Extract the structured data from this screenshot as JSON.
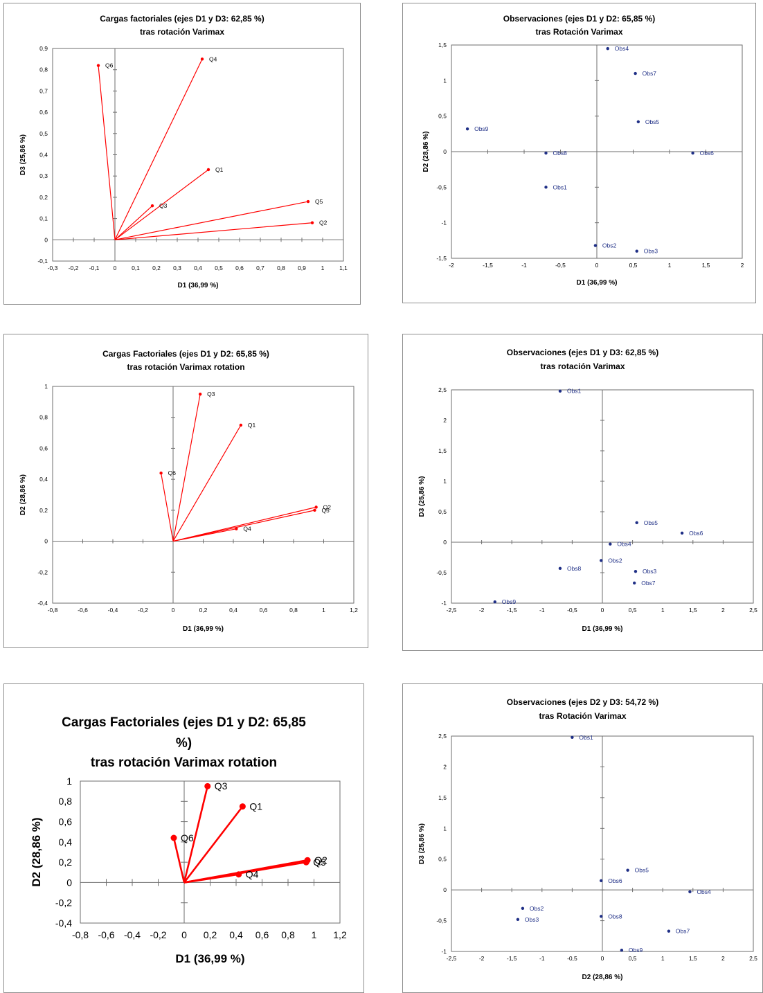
{
  "chart_data": [
    {
      "id": "c1",
      "type": "scatter",
      "mode": "loadings",
      "title": [
        "Cargas factoriales (ejes D1 y D3: 62,85 %)",
        "tras rotación Varimax"
      ],
      "xlabel": "D1 (36,99 %)",
      "ylabel": "D3 (25,86 %)",
      "xlim": [
        -0.3,
        1.1
      ],
      "xstep": 0.1,
      "ylim": [
        -0.1,
        0.9
      ],
      "ystep": 0.1,
      "color": "#ff0000",
      "points": [
        {
          "label": "Q6",
          "x": -0.08,
          "y": 0.82
        },
        {
          "label": "Q4",
          "x": 0.42,
          "y": 0.85
        },
        {
          "label": "Q1",
          "x": 0.45,
          "y": 0.33
        },
        {
          "label": "Q3",
          "x": 0.18,
          "y": 0.16
        },
        {
          "label": "Q5",
          "x": 0.93,
          "y": 0.18
        },
        {
          "label": "Q2",
          "x": 0.95,
          "y": 0.08
        }
      ]
    },
    {
      "id": "c2",
      "type": "scatter",
      "mode": "observations",
      "title": [
        "Observaciones (ejes D1 y D2: 65,85 %)",
        "tras Rotación Varimax"
      ],
      "xlabel": "D1 (36,99 %)",
      "ylabel": "D2 (28,86 %)",
      "xlim": [
        -2,
        2
      ],
      "xstep": 0.5,
      "ylim": [
        -1.5,
        1.5
      ],
      "ystep": 0.5,
      "color": "#1f2f86",
      "points": [
        {
          "label": "Obs4",
          "x": 0.15,
          "y": 1.45
        },
        {
          "label": "Obs7",
          "x": 0.53,
          "y": 1.1
        },
        {
          "label": "Obs5",
          "x": 0.57,
          "y": 0.42
        },
        {
          "label": "Obs9",
          "x": -1.78,
          "y": 0.32
        },
        {
          "label": "Obs8",
          "x": -0.7,
          "y": -0.02
        },
        {
          "label": "Obs6",
          "x": 1.32,
          "y": -0.02
        },
        {
          "label": "Obs1",
          "x": -0.7,
          "y": -0.5
        },
        {
          "label": "Obs2",
          "x": -0.02,
          "y": -1.32
        },
        {
          "label": "Obs3",
          "x": 0.55,
          "y": -1.4
        }
      ]
    },
    {
      "id": "c3",
      "type": "scatter",
      "mode": "loadings",
      "title": [
        "Cargas Factoriales (ejes D1 y D2: 65,85 %)",
        "tras rotación Varimax rotation"
      ],
      "xlabel": "D1 (36,99 %)",
      "ylabel": "D2 (28,86 %)",
      "xlim": [
        -0.8,
        1.2
      ],
      "xstep": 0.2,
      "ylim": [
        -0.4,
        1.0
      ],
      "ystep": 0.2,
      "color": "#ff0000",
      "points": [
        {
          "label": "Q3",
          "x": 0.18,
          "y": 0.95
        },
        {
          "label": "Q1",
          "x": 0.45,
          "y": 0.75
        },
        {
          "label": "Q6",
          "x": -0.08,
          "y": 0.44
        },
        {
          "label": "Q2",
          "x": 0.95,
          "y": 0.22
        },
        {
          "label": "Q5",
          "x": 0.94,
          "y": 0.2
        },
        {
          "label": "Q4",
          "x": 0.42,
          "y": 0.08
        }
      ]
    },
    {
      "id": "c4",
      "type": "scatter",
      "mode": "observations",
      "title": [
        "Observaciones (ejes D1 y D3: 62,85 %)",
        "tras rotación Varimax"
      ],
      "xlabel": "D1 (36,99 %)",
      "ylabel": "D3 (25,86 %)",
      "xlim": [
        -2.5,
        2.5
      ],
      "xstep": 0.5,
      "ylim": [
        -1,
        2.5
      ],
      "ystep": 0.5,
      "color": "#1f2f86",
      "points": [
        {
          "label": "Obs1",
          "x": -0.7,
          "y": 2.48
        },
        {
          "label": "Obs5",
          "x": 0.57,
          "y": 0.32
        },
        {
          "label": "Obs6",
          "x": 1.32,
          "y": 0.15
        },
        {
          "label": "Obs4",
          "x": 0.13,
          "y": -0.03
        },
        {
          "label": "Obs2",
          "x": -0.02,
          "y": -0.3
        },
        {
          "label": "Obs8",
          "x": -0.7,
          "y": -0.43
        },
        {
          "label": "Obs3",
          "x": 0.55,
          "y": -0.48
        },
        {
          "label": "Obs7",
          "x": 0.53,
          "y": -0.67
        },
        {
          "label": "Obs9",
          "x": -1.78,
          "y": -0.98
        }
      ]
    },
    {
      "id": "c5",
      "type": "scatter",
      "mode": "loadings-large",
      "title": [
        "Cargas Factoriales (ejes D1 y D2: 65,85",
        "%)",
        "tras rotación  Varimax rotation"
      ],
      "xlabel": "D1 (36,99 %)",
      "ylabel": "D2 (28,86 %)",
      "xlim": [
        -0.8,
        1.2
      ],
      "xstep": 0.2,
      "ylim": [
        -0.4,
        1.0
      ],
      "ystep": 0.2,
      "color": "#ff0000",
      "points": [
        {
          "label": "Q3",
          "x": 0.18,
          "y": 0.95
        },
        {
          "label": "Q1",
          "x": 0.45,
          "y": 0.75
        },
        {
          "label": "Q6",
          "x": -0.08,
          "y": 0.44
        },
        {
          "label": "Q2",
          "x": 0.95,
          "y": 0.22
        },
        {
          "label": "Q5",
          "x": 0.94,
          "y": 0.2
        },
        {
          "label": "Q4",
          "x": 0.42,
          "y": 0.08
        }
      ]
    },
    {
      "id": "c6",
      "type": "scatter",
      "mode": "observations",
      "title": [
        "Observaciones (ejes D2 y D3: 54,72 %)",
        "tras Rotación Varimax"
      ],
      "xlabel": "D2 (28,86 %)",
      "ylabel": "D3 (25,86 %)",
      "xlim": [
        -2.5,
        2.5
      ],
      "xstep": 0.5,
      "ylim": [
        -1,
        2.5
      ],
      "ystep": 0.5,
      "color": "#1f2f86",
      "points": [
        {
          "label": "Obs1",
          "x": -0.5,
          "y": 2.48
        },
        {
          "label": "Obs5",
          "x": 0.42,
          "y": 0.32
        },
        {
          "label": "Obs6",
          "x": -0.02,
          "y": 0.15
        },
        {
          "label": "Obs4",
          "x": 1.45,
          "y": -0.03
        },
        {
          "label": "Obs2",
          "x": -1.32,
          "y": -0.3
        },
        {
          "label": "Obs8",
          "x": -0.02,
          "y": -0.43
        },
        {
          "label": "Obs3",
          "x": -1.4,
          "y": -0.48
        },
        {
          "label": "Obs7",
          "x": 1.1,
          "y": -0.67
        },
        {
          "label": "Obs9",
          "x": 0.32,
          "y": -0.98
        }
      ]
    }
  ]
}
